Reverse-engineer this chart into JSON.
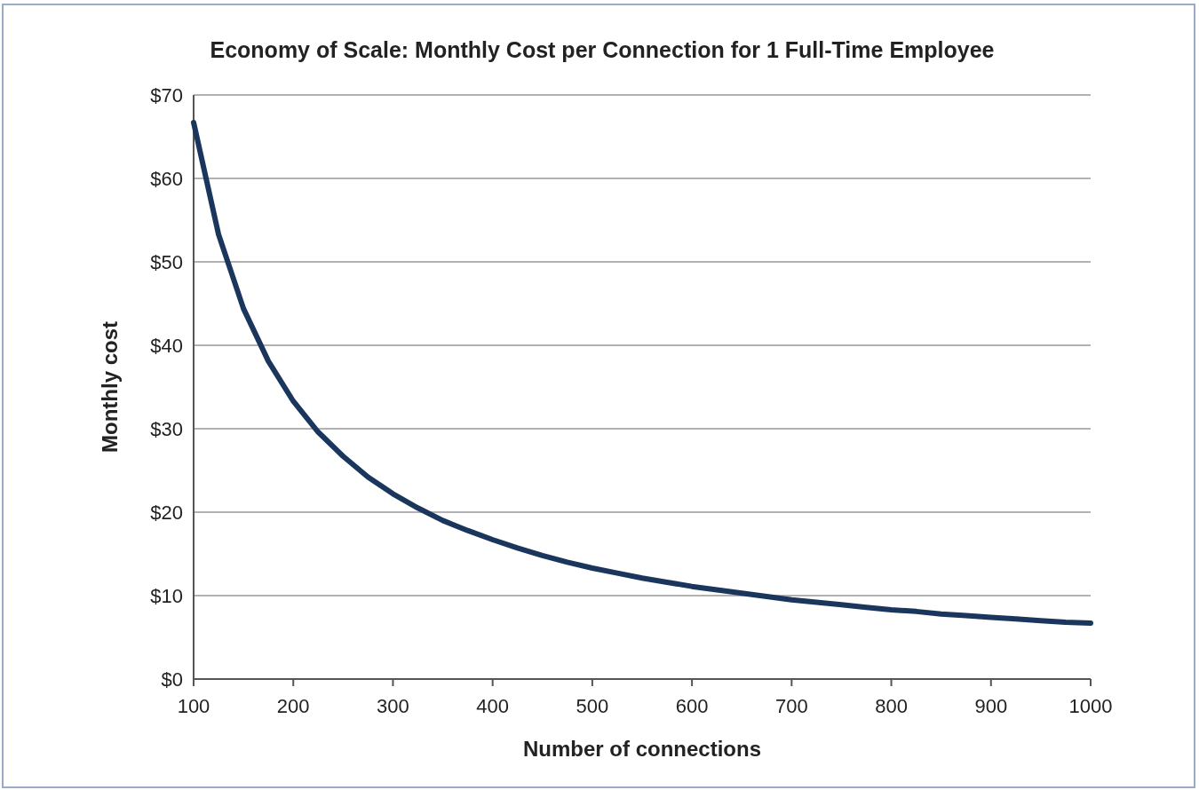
{
  "chart_data": {
    "type": "line",
    "title": "Economy of Scale: Monthly Cost per Connection for 1 Full-Time Employee",
    "xlabel": "Number of connections",
    "ylabel": "Monthly cost",
    "x": [
      100,
      125,
      150,
      175,
      200,
      225,
      250,
      275,
      300,
      325,
      350,
      375,
      400,
      425,
      450,
      475,
      500,
      525,
      550,
      575,
      600,
      625,
      650,
      675,
      700,
      725,
      750,
      775,
      800,
      825,
      850,
      875,
      900,
      925,
      950,
      975,
      1000
    ],
    "series": [
      {
        "color": "#1b365d",
        "values": [
          66.7,
          53.3,
          44.4,
          38.1,
          33.3,
          29.6,
          26.7,
          24.2,
          22.2,
          20.5,
          19.0,
          17.8,
          16.7,
          15.7,
          14.8,
          14.0,
          13.3,
          12.7,
          12.1,
          11.6,
          11.1,
          10.7,
          10.3,
          9.9,
          9.5,
          9.2,
          8.9,
          8.6,
          8.3,
          8.1,
          7.8,
          7.6,
          7.4,
          7.2,
          7.0,
          6.8,
          6.7
        ]
      }
    ],
    "xlim": [
      100,
      1000
    ],
    "xticks": [
      100,
      200,
      300,
      400,
      500,
      600,
      700,
      800,
      900,
      1000
    ],
    "ylim": [
      0,
      70
    ],
    "yticks": [
      {
        "value": 0,
        "label": "$0"
      },
      {
        "value": 10,
        "label": "$10"
      },
      {
        "value": 20,
        "label": "$20"
      },
      {
        "value": 30,
        "label": "$30"
      },
      {
        "value": 40,
        "label": "$40"
      },
      {
        "value": 50,
        "label": "$50"
      },
      {
        "value": 60,
        "label": "$60"
      },
      {
        "value": 70,
        "label": "$70"
      }
    ],
    "grid": "y",
    "marker": "none",
    "line_style": "solid"
  }
}
